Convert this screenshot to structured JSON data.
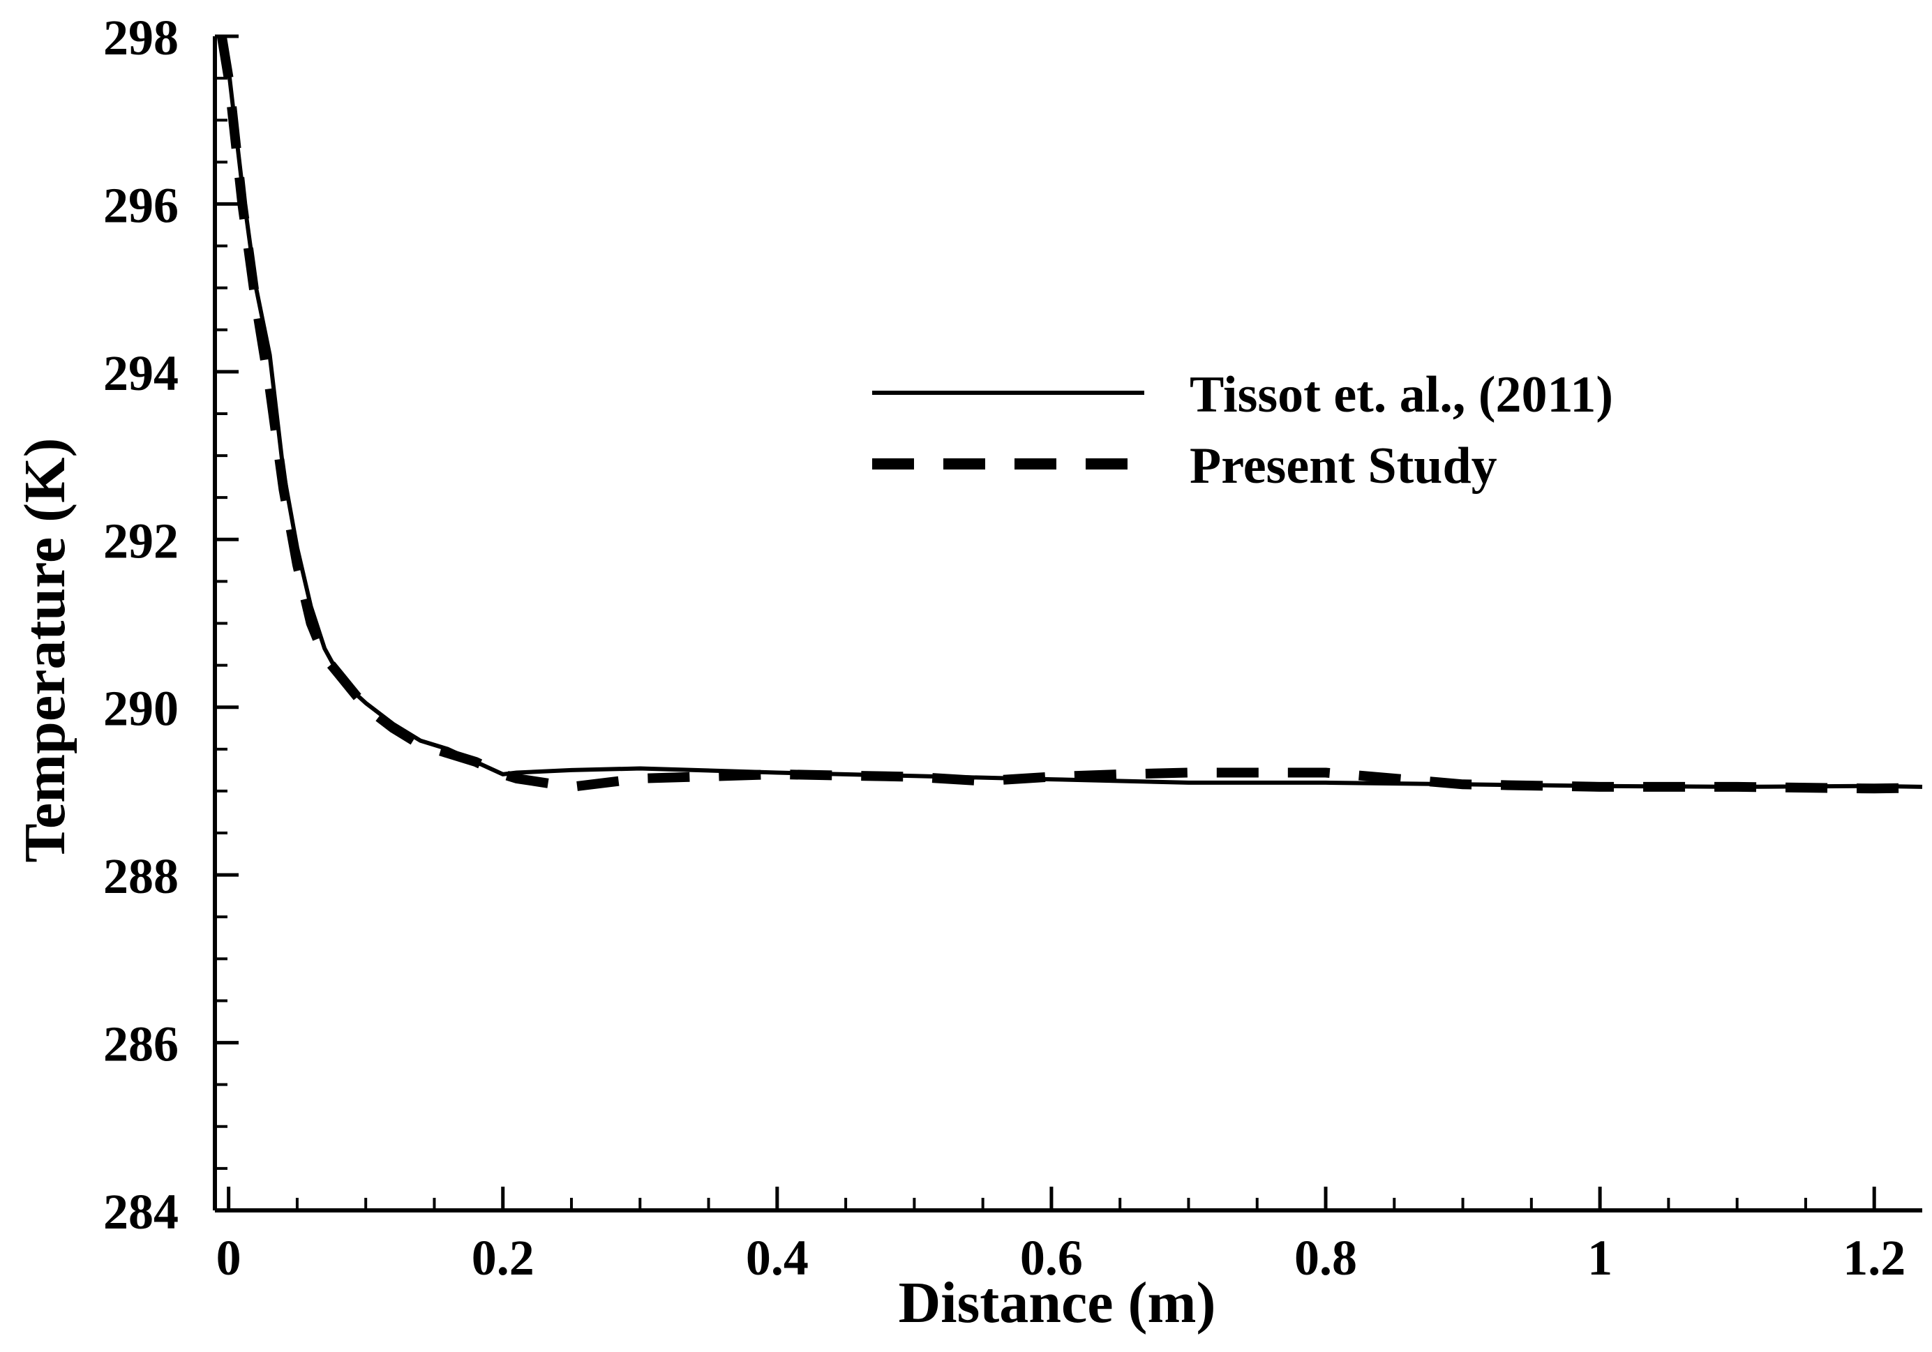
{
  "chart_data": {
    "type": "line",
    "title": "",
    "xlabel": "Distance (m)",
    "ylabel": "Temperature (K)",
    "xlim": [
      -0.01,
      1.235
    ],
    "ylim": [
      284,
      298
    ],
    "grid": false,
    "legend_position": "upper-right",
    "x_ticks": [
      0,
      0.2,
      0.4,
      0.6,
      0.8,
      1,
      1.2
    ],
    "x_tick_labels": [
      "0",
      "0.2",
      "0.4",
      "0.6",
      "0.8",
      "1",
      "1.2"
    ],
    "y_ticks": [
      284,
      286,
      288,
      290,
      292,
      294,
      296,
      298
    ],
    "y_tick_labels": [
      "284",
      "286",
      "288",
      "290",
      "292",
      "294",
      "296",
      "298"
    ],
    "series": [
      {
        "name": "Tissot et. al., (2011)",
        "style": "solid",
        "x": [
          -0.005,
          0.0,
          0.01,
          0.02,
          0.03,
          0.04,
          0.05,
          0.06,
          0.07,
          0.08,
          0.09,
          0.1,
          0.12,
          0.14,
          0.16,
          0.18,
          0.2,
          0.21,
          0.25,
          0.3,
          0.4,
          0.5,
          0.6,
          0.7,
          0.8,
          0.9,
          1.0,
          1.1,
          1.2,
          1.235
        ],
        "y": [
          298.0,
          297.6,
          296.2,
          295.0,
          294.2,
          292.8,
          291.9,
          291.2,
          290.7,
          290.4,
          290.2,
          290.05,
          289.8,
          289.6,
          289.5,
          289.35,
          289.2,
          289.22,
          289.25,
          289.27,
          289.22,
          289.18,
          289.14,
          289.1,
          289.1,
          289.08,
          289.06,
          289.05,
          289.06,
          289.05
        ]
      },
      {
        "name": "Present Study",
        "style": "dashed",
        "x": [
          -0.005,
          0.0,
          0.01,
          0.02,
          0.03,
          0.04,
          0.05,
          0.06,
          0.07,
          0.08,
          0.09,
          0.1,
          0.12,
          0.14,
          0.16,
          0.18,
          0.2,
          0.21,
          0.25,
          0.3,
          0.4,
          0.5,
          0.55,
          0.6,
          0.65,
          0.7,
          0.8,
          0.9,
          1.0,
          1.1,
          1.2,
          1.235
        ],
        "y": [
          298.0,
          297.5,
          296.0,
          294.8,
          293.8,
          292.6,
          291.7,
          291.0,
          290.6,
          290.4,
          290.2,
          290.0,
          289.75,
          289.55,
          289.45,
          289.35,
          289.2,
          289.15,
          289.05,
          289.15,
          289.2,
          289.17,
          289.12,
          289.17,
          289.2,
          289.22,
          289.22,
          289.08,
          289.05,
          289.05,
          289.03,
          289.04
        ]
      }
    ]
  }
}
